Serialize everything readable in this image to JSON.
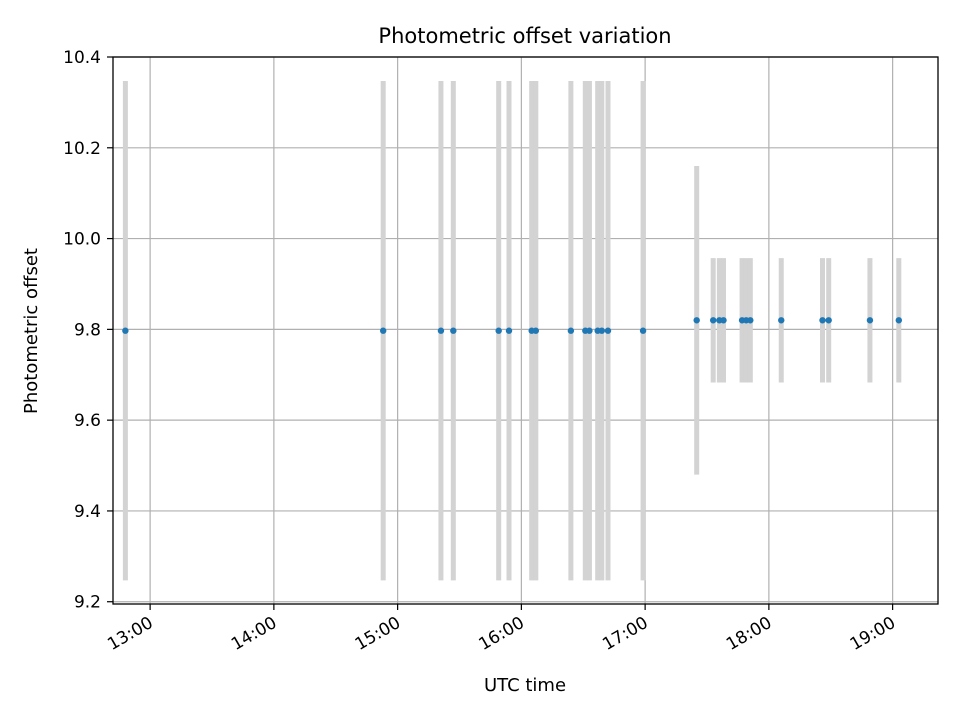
{
  "chart_data": {
    "type": "scatter",
    "title": "Photometric offset variation",
    "xlabel": "UTC time",
    "ylabel": "Photometric offset",
    "x_axis": {
      "type": "time",
      "range": [
        "12:42",
        "19:22"
      ],
      "ticks": [
        "13:00",
        "14:00",
        "15:00",
        "16:00",
        "17:00",
        "18:00",
        "19:00"
      ]
    },
    "y_axis": {
      "range": [
        9.195,
        10.4
      ],
      "ticks": [
        "9.2",
        "9.4",
        "9.6",
        "9.8",
        "10.0",
        "10.2",
        "10.4"
      ]
    },
    "grid": true,
    "colors": {
      "point": "#1f77b4",
      "error_bar": "#d3d3d3",
      "grid": "#b0b0b0"
    },
    "points": [
      {
        "x": "12:48",
        "y": 9.797,
        "err": 0.55
      },
      {
        "x": "14:53",
        "y": 9.797,
        "err": 0.55
      },
      {
        "x": "15:21",
        "y": 9.797,
        "err": 0.55
      },
      {
        "x": "15:27",
        "y": 9.797,
        "err": 0.55
      },
      {
        "x": "15:49",
        "y": 9.797,
        "err": 0.55
      },
      {
        "x": "15:54",
        "y": 9.797,
        "err": 0.55
      },
      {
        "x": "16:05",
        "y": 9.797,
        "err": 0.55
      },
      {
        "x": "16:07",
        "y": 9.797,
        "err": 0.55
      },
      {
        "x": "16:24",
        "y": 9.797,
        "err": 0.55
      },
      {
        "x": "16:31",
        "y": 9.797,
        "err": 0.55
      },
      {
        "x": "16:33",
        "y": 9.797,
        "err": 0.55
      },
      {
        "x": "16:37",
        "y": 9.797,
        "err": 0.55
      },
      {
        "x": "16:39",
        "y": 9.797,
        "err": 0.55
      },
      {
        "x": "16:42",
        "y": 9.797,
        "err": 0.55
      },
      {
        "x": "16:59",
        "y": 9.797,
        "err": 0.55
      },
      {
        "x": "17:25",
        "y": 9.82,
        "err": 0.34
      },
      {
        "x": "17:33",
        "y": 9.82,
        "err": 0.137
      },
      {
        "x": "17:36",
        "y": 9.82,
        "err": 0.137
      },
      {
        "x": "17:38",
        "y": 9.82,
        "err": 0.137
      },
      {
        "x": "17:47",
        "y": 9.82,
        "err": 0.137
      },
      {
        "x": "17:49",
        "y": 9.82,
        "err": 0.137
      },
      {
        "x": "17:51",
        "y": 9.82,
        "err": 0.137
      },
      {
        "x": "18:06",
        "y": 9.82,
        "err": 0.137
      },
      {
        "x": "18:26",
        "y": 9.82,
        "err": 0.137
      },
      {
        "x": "18:29",
        "y": 9.82,
        "err": 0.137
      },
      {
        "x": "18:49",
        "y": 9.82,
        "err": 0.137
      },
      {
        "x": "19:03",
        "y": 9.82,
        "err": 0.137
      }
    ]
  }
}
